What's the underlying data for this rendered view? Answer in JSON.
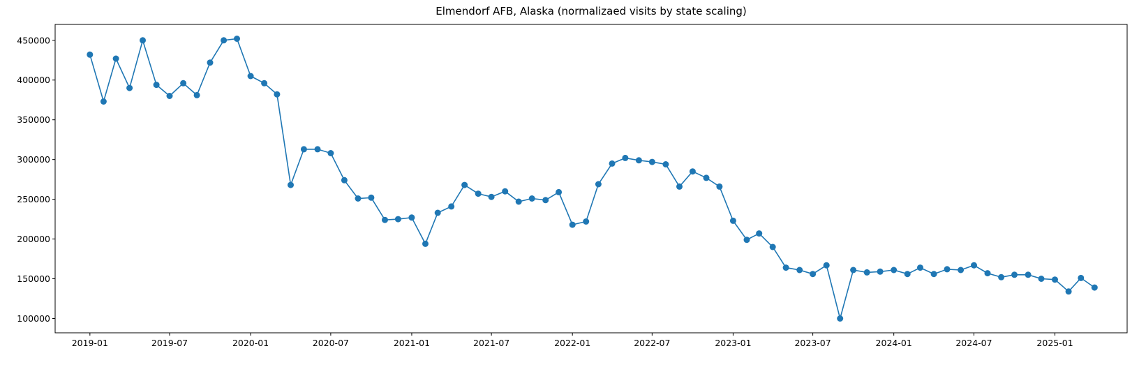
{
  "chart_data": {
    "type": "line",
    "title": "Elmendorf AFB, Alaska (normalizaed visits by state scaling)",
    "xlabel": "",
    "ylabel": "",
    "marker": "circle",
    "color": "#1f77b4",
    "grid": false,
    "legend": "none",
    "x_range": [
      "2018-10-14",
      "2025-06-14"
    ],
    "ylim": [
      82000,
      470000
    ],
    "y_ticks": [
      100000,
      150000,
      200000,
      250000,
      300000,
      350000,
      400000,
      450000
    ],
    "y_tick_labels": [
      "100000",
      "150000",
      "200000",
      "250000",
      "300000",
      "350000",
      "400000",
      "450000"
    ],
    "x_ticks": [
      "2019-01-01",
      "2019-07-01",
      "2020-01-01",
      "2020-07-01",
      "2021-01-01",
      "2021-07-01",
      "2022-01-01",
      "2022-07-01",
      "2023-01-01",
      "2023-07-01",
      "2024-01-01",
      "2024-07-01",
      "2025-01-01"
    ],
    "x_tick_labels": [
      "2019-01",
      "2019-07",
      "2020-01",
      "2020-07",
      "2021-01",
      "2021-07",
      "2022-01",
      "2022-07",
      "2023-01",
      "2023-07",
      "2024-01",
      "2024-07",
      "2025-01"
    ],
    "series": [
      {
        "x": [
          "2019-01-01",
          "2019-02-01",
          "2019-03-01",
          "2019-04-01",
          "2019-05-01",
          "2019-06-01",
          "2019-07-01",
          "2019-08-01",
          "2019-09-01",
          "2019-10-01",
          "2019-11-01",
          "2019-12-01",
          "2020-01-01",
          "2020-02-01",
          "2020-03-01",
          "2020-04-01",
          "2020-05-01",
          "2020-06-01",
          "2020-07-01",
          "2020-08-01",
          "2020-09-01",
          "2020-10-01",
          "2020-11-01",
          "2020-12-01",
          "2021-01-01",
          "2021-02-01",
          "2021-03-01",
          "2021-04-01",
          "2021-05-01",
          "2021-06-01",
          "2021-07-01",
          "2021-08-01",
          "2021-09-01",
          "2021-10-01",
          "2021-11-01",
          "2021-12-01",
          "2022-01-01",
          "2022-02-01",
          "2022-03-01",
          "2022-04-01",
          "2022-05-01",
          "2022-06-01",
          "2022-07-01",
          "2022-08-01",
          "2022-09-01",
          "2022-10-01",
          "2022-11-01",
          "2022-12-01",
          "2023-01-01",
          "2023-02-01",
          "2023-03-01",
          "2023-04-01",
          "2023-05-01",
          "2023-06-01",
          "2023-07-01",
          "2023-08-01",
          "2023-09-01",
          "2023-10-01",
          "2023-11-01",
          "2023-12-01",
          "2024-01-01",
          "2024-02-01",
          "2024-03-01",
          "2024-04-01",
          "2024-05-01",
          "2024-06-01",
          "2024-07-01",
          "2024-08-01",
          "2024-09-01",
          "2024-10-01",
          "2024-11-01",
          "2024-12-01",
          "2025-01-01",
          "2025-02-01",
          "2025-03-01",
          "2025-04-01"
        ],
        "values": [
          432000,
          373000,
          427000,
          390000,
          450000,
          394000,
          380000,
          396000,
          381000,
          422000,
          450000,
          452000,
          405000,
          396000,
          382000,
          268000,
          313000,
          313000,
          308000,
          274000,
          251000,
          252000,
          224000,
          225000,
          227000,
          194000,
          233000,
          241000,
          268000,
          257000,
          253000,
          260000,
          247000,
          251000,
          249000,
          259000,
          218000,
          222000,
          269000,
          295000,
          302000,
          299000,
          297000,
          294000,
          266000,
          285000,
          277000,
          266000,
          223000,
          199000,
          207000,
          190000,
          164000,
          161000,
          156000,
          167000,
          100000,
          161000,
          158000,
          159000,
          161000,
          156000,
          164000,
          156000,
          162000,
          161000,
          167000,
          157000,
          152000,
          155000,
          155000,
          150000,
          149000,
          134000,
          151000,
          139000
        ]
      }
    ]
  }
}
